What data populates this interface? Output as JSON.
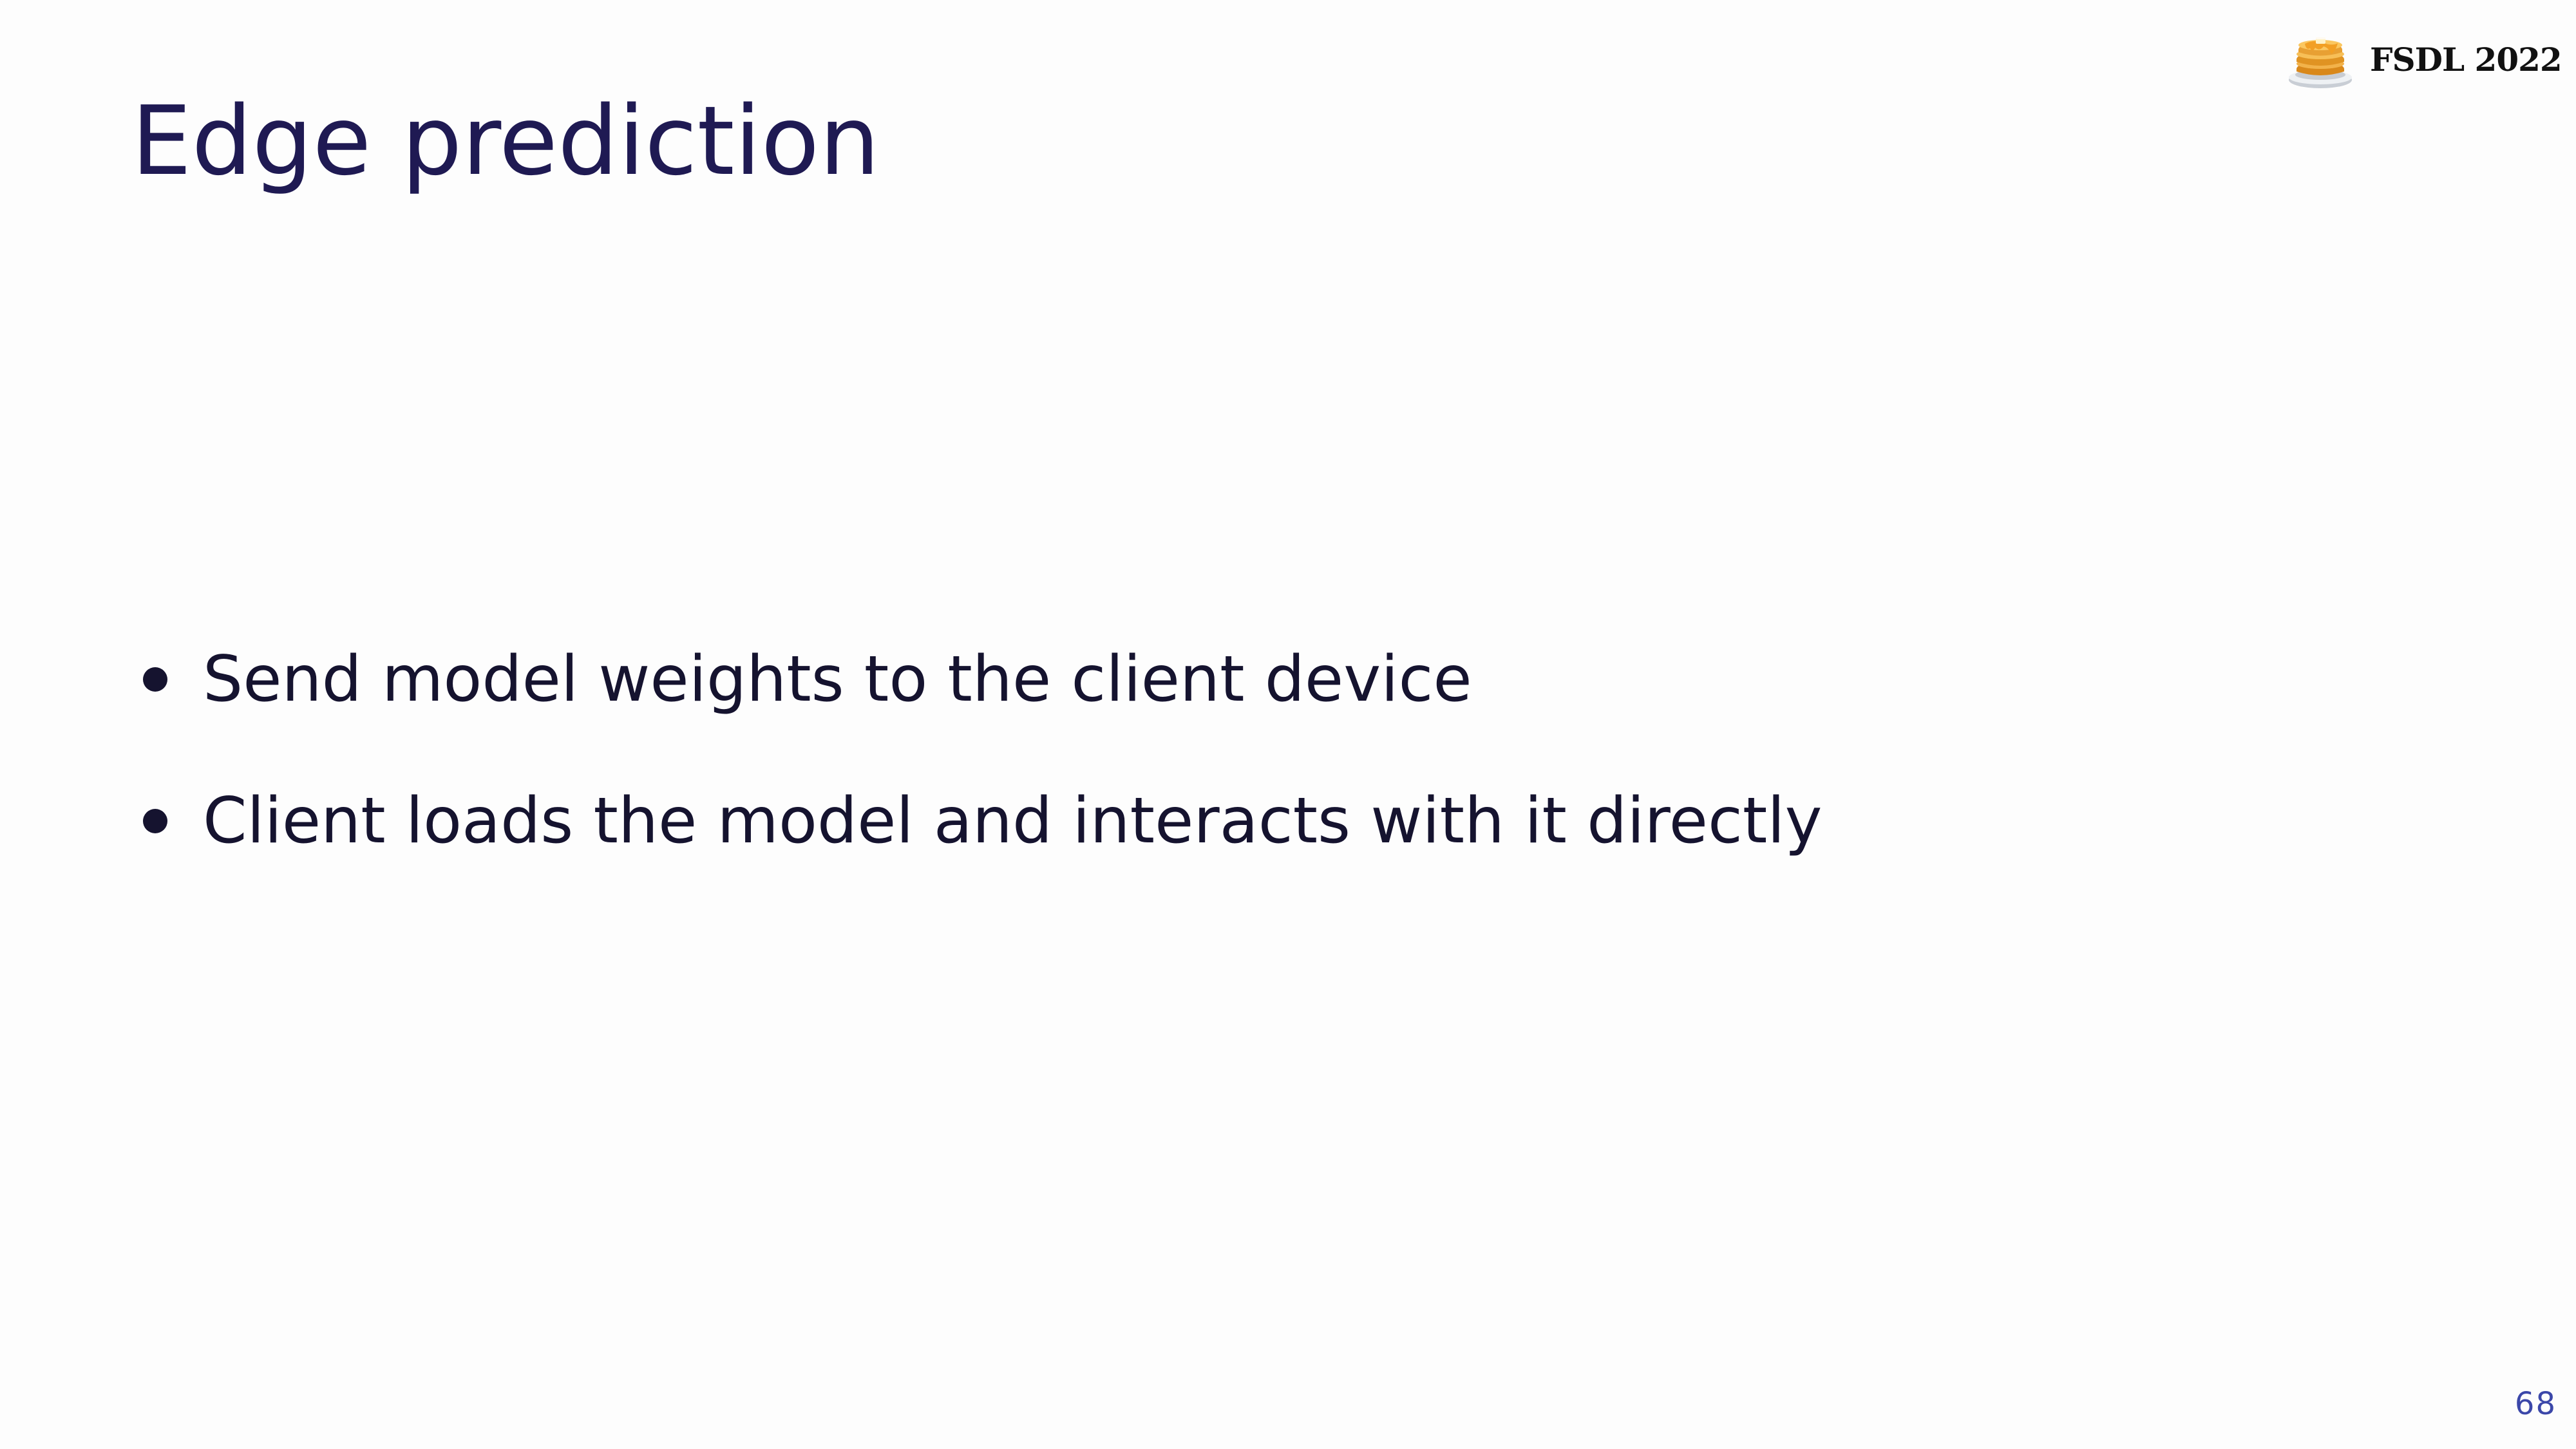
{
  "slide": {
    "title": "Edge prediction",
    "brand": {
      "logo_icon": "pancake-stack-icon",
      "text": "FSDL 2022"
    },
    "bullets": [
      "Send model weights to the client device",
      "Client loads the model and interacts with it directly"
    ],
    "page_number": "68"
  }
}
